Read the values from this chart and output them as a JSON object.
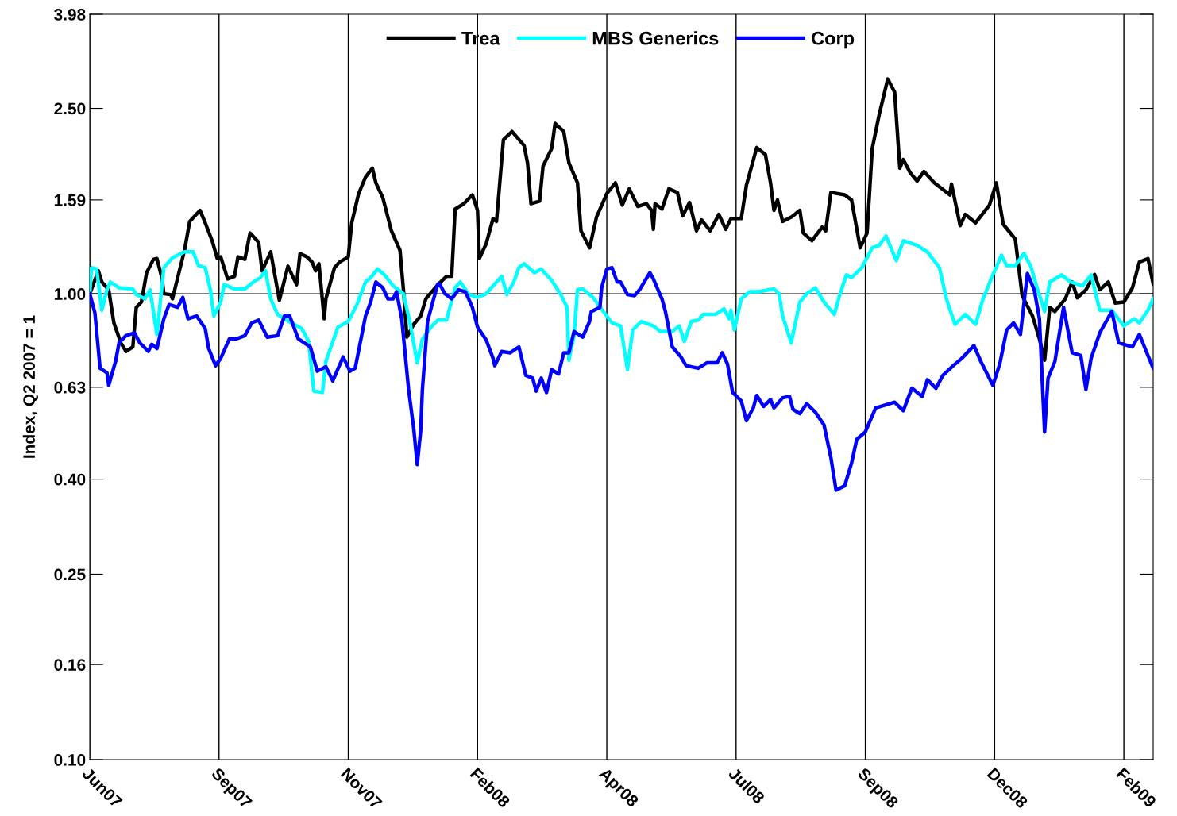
{
  "chart_data": {
    "type": "line",
    "ylabel": "Index, Q2 2007 = 1",
    "log": "y",
    "grid": "x",
    "legend": "top",
    "line_style": "solid",
    "marker": "none",
    "xlim": [
      "2007-06-29",
      "2009-03-07"
    ],
    "xticks": [
      {
        "value": "2007-06-29",
        "label": "Jun07"
      },
      {
        "value": "2007-09-12",
        "label": "Sep07"
      },
      {
        "value": "2007-11-26",
        "label": "Nov07"
      },
      {
        "value": "2008-02-09",
        "label": "Feb08"
      },
      {
        "value": "2008-04-24",
        "label": "Apr08"
      },
      {
        "value": "2008-07-08",
        "label": "Jul08"
      },
      {
        "value": "2008-09-21",
        "label": "Sep08"
      },
      {
        "value": "2008-12-05",
        "label": "Dec08"
      },
      {
        "value": "2009-02-18",
        "label": "Feb09"
      }
    ],
    "ylim": [
      0.1,
      3.98
    ],
    "yticks": [
      {
        "value": 0.1,
        "label": "0.10"
      },
      {
        "value": 0.16,
        "label": "0.16"
      },
      {
        "value": 0.25,
        "label": "0.25"
      },
      {
        "value": 0.4,
        "label": "0.40"
      },
      {
        "value": 0.63,
        "label": "0.63"
      },
      {
        "value": 1,
        "label": "1.00"
      },
      {
        "value": 1.59,
        "label": "1.59"
      },
      {
        "value": 2.5,
        "label": "2.50"
      },
      {
        "value": 3.98,
        "label": "3.98"
      }
    ],
    "ref_lines": [
      {
        "axis": "y",
        "value": 1,
        "color": "#000000"
      }
    ],
    "series": [
      {
        "name": "Trea",
        "color": "#000000",
        "x": [
          "2007-06-29",
          "2007-07-04",
          "2007-07-06",
          "2007-07-10",
          "2007-07-13",
          "2007-07-17",
          "2007-07-20",
          "2007-07-24",
          "2007-07-26",
          "2007-07-29",
          "2007-08-01",
          "2007-08-05",
          "2007-08-07",
          "2007-08-10",
          "2007-08-11",
          "2007-08-15",
          "2007-08-16",
          "2007-08-20",
          "2007-08-23",
          "2007-08-26",
          "2007-09-01",
          "2007-09-04",
          "2007-09-08",
          "2007-09-11",
          "2007-09-13",
          "2007-09-17",
          "2007-09-21",
          "2007-09-23",
          "2007-09-27",
          "2007-09-30",
          "2007-10-05",
          "2007-10-07",
          "2007-10-12",
          "2007-10-17",
          "2007-10-22",
          "2007-10-27",
          "2007-10-29",
          "2007-11-02",
          "2007-11-05",
          "2007-11-07",
          "2007-11-09",
          "2007-11-12",
          "2007-11-13",
          "2007-11-18",
          "2007-11-21",
          "2007-11-26",
          "2007-11-28",
          "2007-12-02",
          "2007-12-06",
          "2007-12-10",
          "2007-12-12",
          "2007-12-16",
          "2007-12-21",
          "2007-12-26",
          "2007-12-28",
          "2007-12-30",
          "2008-01-03",
          "2008-01-07",
          "2008-01-10",
          "2008-01-17",
          "2008-01-22",
          "2008-01-25",
          "2008-01-27",
          "2008-02-01",
          "2008-02-06",
          "2008-02-09",
          "2008-02-10",
          "2008-02-14",
          "2008-02-18",
          "2008-02-20",
          "2008-02-24",
          "2008-02-29",
          "2008-03-07",
          "2008-03-09",
          "2008-03-11",
          "2008-03-16",
          "2008-03-18",
          "2008-03-23",
          "2008-03-25",
          "2008-03-30",
          "2008-04-02",
          "2008-04-07",
          "2008-04-09",
          "2008-04-14",
          "2008-04-18",
          "2008-04-24",
          "2008-04-29",
          "2008-05-03",
          "2008-05-07",
          "2008-05-12",
          "2008-05-17",
          "2008-05-20",
          "2008-05-21",
          "2008-05-22",
          "2008-05-26",
          "2008-05-30",
          "2008-06-04",
          "2008-06-07",
          "2008-06-11",
          "2008-06-15",
          "2008-06-18",
          "2008-06-23",
          "2008-06-28",
          "2008-07-02",
          "2008-07-05",
          "2008-07-11",
          "2008-07-14",
          "2008-07-20",
          "2008-07-25",
          "2008-07-28",
          "2008-07-30",
          "2008-08-01",
          "2008-08-04",
          "2008-08-09",
          "2008-08-14",
          "2008-08-16",
          "2008-08-21",
          "2008-08-27",
          "2008-08-29",
          "2008-09-01",
          "2008-09-09",
          "2008-09-13",
          "2008-09-18",
          "2008-09-22",
          "2008-09-25",
          "2008-09-29",
          "2008-10-04",
          "2008-10-08",
          "2008-10-11",
          "2008-10-13",
          "2008-10-17",
          "2008-10-21",
          "2008-10-25",
          "2008-10-31",
          "2008-11-09",
          "2008-11-10",
          "2008-11-15",
          "2008-11-18",
          "2008-11-24",
          "2008-12-02",
          "2008-12-06",
          "2008-12-10",
          "2008-12-17",
          "2008-12-21",
          "2008-12-27",
          "2008-12-31",
          "2009-01-03",
          "2009-01-06",
          "2009-01-09",
          "2009-01-15",
          "2009-01-19",
          "2009-01-22",
          "2009-01-27",
          "2009-02-01",
          "2009-02-04",
          "2009-02-09",
          "2009-02-13",
          "2009-02-18",
          "2009-02-23",
          "2009-02-27",
          "2009-03-04",
          "2009-03-07"
        ],
        "values": [
          1.0,
          1.12,
          1.06,
          1.02,
          0.866,
          0.785,
          0.752,
          0.769,
          0.935,
          0.96,
          1.11,
          1.186,
          1.19,
          1.076,
          1.0,
          0.996,
          0.975,
          1.12,
          1.24,
          1.43,
          1.51,
          1.42,
          1.3,
          1.19,
          1.2,
          1.076,
          1.09,
          1.2,
          1.186,
          1.35,
          1.29,
          1.12,
          1.23,
          0.968,
          1.146,
          1.046,
          1.22,
          1.2,
          1.17,
          1.12,
          1.16,
          0.884,
          0.975,
          1.138,
          1.17,
          1.2,
          1.42,
          1.64,
          1.78,
          1.86,
          1.73,
          1.61,
          1.365,
          1.24,
          1.02,
          0.807,
          0.86,
          0.896,
          0.975,
          1.046,
          1.09,
          1.09,
          1.52,
          1.56,
          1.63,
          1.51,
          1.19,
          1.28,
          1.45,
          1.43,
          2.14,
          2.23,
          2.08,
          1.91,
          1.56,
          1.58,
          1.88,
          2.05,
          2.32,
          2.23,
          1.91,
          1.73,
          1.365,
          1.255,
          1.46,
          1.64,
          1.73,
          1.55,
          1.68,
          1.54,
          1.56,
          1.51,
          1.375,
          1.56,
          1.52,
          1.68,
          1.65,
          1.47,
          1.57,
          1.365,
          1.44,
          1.365,
          1.48,
          1.375,
          1.45,
          1.45,
          1.71,
          2.06,
          1.99,
          1.73,
          1.51,
          1.59,
          1.43,
          1.46,
          1.51,
          1.35,
          1.3,
          1.39,
          1.365,
          1.65,
          1.63,
          1.59,
          1.255,
          1.35,
          2.05,
          2.42,
          2.89,
          2.71,
          1.86,
          1.94,
          1.82,
          1.745,
          1.83,
          1.73,
          1.63,
          1.72,
          1.4,
          1.48,
          1.42,
          1.55,
          1.73,
          1.41,
          1.31,
          0.99,
          0.896,
          0.8,
          0.72,
          0.935,
          0.916,
          0.975,
          1.06,
          0.98,
          1.02,
          1.1,
          1.02,
          1.06,
          0.955,
          0.96,
          1.03,
          1.17,
          1.19,
          1.05
        ]
      },
      {
        "name": "MBS Generics",
        "color": "#00ffff",
        "x": [
          "2007-06-29",
          "2007-06-30",
          "2007-07-03",
          "2007-07-06",
          "2007-07-09",
          "2007-07-11",
          "2007-07-16",
          "2007-07-24",
          "2007-07-26",
          "2007-07-31",
          "2007-08-03",
          "2007-08-07",
          "2007-08-11",
          "2007-08-16",
          "2007-08-23",
          "2007-08-28",
          "2007-08-31",
          "2007-09-04",
          "2007-09-07",
          "2007-09-09",
          "2007-09-13",
          "2007-09-15",
          "2007-09-21",
          "2007-09-27",
          "2007-10-02",
          "2007-10-06",
          "2007-10-09",
          "2007-10-12",
          "2007-10-16",
          "2007-10-24",
          "2007-10-30",
          "2007-11-03",
          "2007-11-06",
          "2007-11-11",
          "2007-11-13",
          "2007-11-20",
          "2007-11-26",
          "2007-12-01",
          "2007-12-06",
          "2007-12-09",
          "2007-12-13",
          "2007-12-17",
          "2007-12-22",
          "2007-12-28",
          "2008-01-01",
          "2008-01-05",
          "2008-01-08",
          "2008-01-13",
          "2008-01-17",
          "2008-01-22",
          "2008-01-27",
          "2008-01-30",
          "2008-02-04",
          "2008-02-09",
          "2008-02-14",
          "2008-02-20",
          "2008-02-23",
          "2008-02-26",
          "2008-03-01",
          "2008-03-04",
          "2008-03-07",
          "2008-03-13",
          "2008-03-17",
          "2008-03-23",
          "2008-03-28",
          "2008-04-01",
          "2008-04-02",
          "2008-04-05",
          "2008-04-07",
          "2008-04-10",
          "2008-04-16",
          "2008-04-22",
          "2008-04-27",
          "2008-05-02",
          "2008-05-06",
          "2008-05-09",
          "2008-05-14",
          "2008-05-21",
          "2008-05-25",
          "2008-06-01",
          "2008-06-05",
          "2008-06-08",
          "2008-06-12",
          "2008-06-16",
          "2008-06-19",
          "2008-06-26",
          "2008-07-01",
          "2008-07-04",
          "2008-07-05",
          "2008-07-07",
          "2008-07-11",
          "2008-07-16",
          "2008-07-21",
          "2008-07-30",
          "2008-08-02",
          "2008-08-04",
          "2008-08-09",
          "2008-08-14",
          "2008-08-18",
          "2008-08-23",
          "2008-08-28",
          "2008-09-03",
          "2008-09-06",
          "2008-09-10",
          "2008-09-13",
          "2008-09-19",
          "2008-09-25",
          "2008-09-29",
          "2008-10-03",
          "2008-10-09",
          "2008-10-13",
          "2008-10-21",
          "2008-10-27",
          "2008-11-03",
          "2008-11-07",
          "2008-11-12",
          "2008-11-18",
          "2008-11-24",
          "2008-11-28",
          "2008-12-03",
          "2008-12-09",
          "2008-12-12",
          "2008-12-17",
          "2008-12-22",
          "2008-12-26",
          "2008-12-30",
          "2009-01-03",
          "2009-01-06",
          "2009-01-13",
          "2009-01-18",
          "2009-01-25",
          "2009-01-30",
          "2009-02-04",
          "2009-02-11",
          "2009-02-18",
          "2009-02-24",
          "2009-02-27",
          "2009-03-04",
          "2009-03-07"
        ],
        "values": [
          1.0,
          1.138,
          1.13,
          0.922,
          1.02,
          1.06,
          1.03,
          1.024,
          0.996,
          0.975,
          1.02,
          0.818,
          1.138,
          1.195,
          1.23,
          1.23,
          1.15,
          1.138,
          1.02,
          0.896,
          0.96,
          1.046,
          1.024,
          1.024,
          1.06,
          1.083,
          1.12,
          0.975,
          0.903,
          0.866,
          0.842,
          0.79,
          0.618,
          0.614,
          0.716,
          0.848,
          0.872,
          0.948,
          1.06,
          1.083,
          1.13,
          1.098,
          1.04,
          1.0,
          0.86,
          0.711,
          0.8,
          0.848,
          0.878,
          0.878,
          1.03,
          1.06,
          0.996,
          0.982,
          1.0,
          1.06,
          1.09,
          0.996,
          1.06,
          1.138,
          1.16,
          1.11,
          1.13,
          1.068,
          1.0,
          0.935,
          0.72,
          0.813,
          1.02,
          1.024,
          0.982,
          0.916,
          0.866,
          0.853,
          0.687,
          0.836,
          0.872,
          0.853,
          0.83,
          0.83,
          0.853,
          0.79,
          0.872,
          0.878,
          0.903,
          0.903,
          0.928,
          0.884,
          0.922,
          0.836,
          0.975,
          1.01,
          1.01,
          1.024,
          1.0,
          0.896,
          0.785,
          0.96,
          1.0,
          1.03,
          0.96,
          0.903,
          0.99,
          1.098,
          1.083,
          1.138,
          1.255,
          1.27,
          1.33,
          1.178,
          1.3,
          1.27,
          1.23,
          1.138,
          0.975,
          0.86,
          0.903,
          0.86,
          0.968,
          1.076,
          1.21,
          1.15,
          1.15,
          1.22,
          1.146,
          1.02,
          0.916,
          1.06,
          1.098,
          1.06,
          1.04,
          1.098,
          0.922,
          0.922,
          0.853,
          0.884,
          0.866,
          0.922,
          0.975
        ]
      },
      {
        "name": "Corp",
        "color": "#0000ff",
        "x": [
          "2007-06-29",
          "2007-07-02",
          "2007-07-05",
          "2007-07-09",
          "2007-07-10",
          "2007-07-14",
          "2007-07-16",
          "2007-07-20",
          "2007-07-25",
          "2007-07-28",
          "2007-08-02",
          "2007-08-04",
          "2007-08-07",
          "2007-08-11",
          "2007-08-14",
          "2007-08-19",
          "2007-08-22",
          "2007-08-25",
          "2007-08-30",
          "2007-09-04",
          "2007-09-06",
          "2007-09-10",
          "2007-09-13",
          "2007-09-18",
          "2007-09-22",
          "2007-09-27",
          "2007-10-01",
          "2007-10-05",
          "2007-10-10",
          "2007-10-16",
          "2007-10-20",
          "2007-10-23",
          "2007-10-28",
          "2007-11-04",
          "2007-11-08",
          "2007-11-13",
          "2007-11-17",
          "2007-11-23",
          "2007-11-27",
          "2007-11-30",
          "2007-12-06",
          "2007-12-09",
          "2007-12-12",
          "2007-12-16",
          "2007-12-19",
          "2007-12-22",
          "2007-12-24",
          "2007-12-27",
          "2007-12-31",
          "2008-01-03",
          "2008-01-05",
          "2008-01-07",
          "2008-01-08",
          "2008-01-11",
          "2008-01-14",
          "2008-01-17",
          "2008-01-18",
          "2008-01-21",
          "2008-01-25",
          "2008-01-29",
          "2008-02-02",
          "2008-02-06",
          "2008-02-09",
          "2008-02-14",
          "2008-02-18",
          "2008-02-19",
          "2008-02-23",
          "2008-02-28",
          "2008-03-04",
          "2008-03-08",
          "2008-03-12",
          "2008-03-14",
          "2008-03-17",
          "2008-03-20",
          "2008-03-23",
          "2008-03-27",
          "2008-03-30",
          "2008-04-02",
          "2008-04-05",
          "2008-04-10",
          "2008-04-14",
          "2008-04-15",
          "2008-04-20",
          "2008-04-21",
          "2008-04-24",
          "2008-04-27",
          "2008-04-30",
          "2008-05-02",
          "2008-05-06",
          "2008-05-10",
          "2008-05-13",
          "2008-05-19",
          "2008-05-21",
          "2008-05-26",
          "2008-05-28",
          "2008-06-01",
          "2008-06-06",
          "2008-06-09",
          "2008-06-16",
          "2008-06-21",
          "2008-06-27",
          "2008-06-30",
          "2008-07-03",
          "2008-07-06",
          "2008-07-11",
          "2008-07-14",
          "2008-07-18",
          "2008-07-20",
          "2008-07-24",
          "2008-07-28",
          "2008-07-30",
          "2008-08-04",
          "2008-08-08",
          "2008-08-10",
          "2008-08-14",
          "2008-08-18",
          "2008-08-23",
          "2008-08-28",
          "2008-09-01",
          "2008-09-04",
          "2008-09-09",
          "2008-09-13",
          "2008-09-16",
          "2008-09-21",
          "2008-09-27",
          "2008-10-02",
          "2008-10-08",
          "2008-10-13",
          "2008-10-18",
          "2008-10-24",
          "2008-10-27",
          "2008-11-01",
          "2008-11-05",
          "2008-11-11",
          "2008-11-16",
          "2008-11-23",
          "2008-11-27",
          "2008-12-04",
          "2008-12-08",
          "2008-12-12",
          "2008-12-16",
          "2008-12-20",
          "2008-12-24",
          "2008-12-28",
          "2008-12-31",
          "2009-01-03",
          "2009-01-05",
          "2009-01-09",
          "2009-01-14",
          "2009-01-19",
          "2009-01-24",
          "2009-01-27",
          "2009-01-30",
          "2009-02-04",
          "2009-02-11",
          "2009-02-15",
          "2009-02-23",
          "2009-02-27",
          "2009-03-03",
          "2009-03-07"
        ],
        "values": [
          1.0,
          0.909,
          0.692,
          0.677,
          0.636,
          0.716,
          0.785,
          0.813,
          0.824,
          0.785,
          0.752,
          0.779,
          0.763,
          0.884,
          0.948,
          0.935,
          0.982,
          0.884,
          0.896,
          0.842,
          0.763,
          0.701,
          0.727,
          0.8,
          0.8,
          0.813,
          0.866,
          0.878,
          0.807,
          0.813,
          0.896,
          0.896,
          0.8,
          0.769,
          0.682,
          0.697,
          0.65,
          0.732,
          0.682,
          0.692,
          0.896,
          0.96,
          1.06,
          1.03,
          0.975,
          0.975,
          1.01,
          0.884,
          0.623,
          0.512,
          0.43,
          0.508,
          0.623,
          0.872,
          0.96,
          1.05,
          1.05,
          1.0,
          0.975,
          1.02,
          1.01,
          0.935,
          0.848,
          0.796,
          0.727,
          0.701,
          0.752,
          0.747,
          0.769,
          0.668,
          0.659,
          0.618,
          0.659,
          0.614,
          0.687,
          0.673,
          0.747,
          0.747,
          0.83,
          0.807,
          0.872,
          0.916,
          0.935,
          1.03,
          1.13,
          1.138,
          1.06,
          1.06,
          0.996,
          0.99,
          1.02,
          1.11,
          1.076,
          0.975,
          0.916,
          0.769,
          0.732,
          0.701,
          0.692,
          0.711,
          0.711,
          0.747,
          0.707,
          0.614,
          0.589,
          0.534,
          0.569,
          0.605,
          0.573,
          0.593,
          0.569,
          0.598,
          0.602,
          0.565,
          0.553,
          0.581,
          0.557,
          0.523,
          0.445,
          0.379,
          0.387,
          0.433,
          0.487,
          0.505,
          0.569,
          0.576,
          0.585,
          0.561,
          0.627,
          0.602,
          0.654,
          0.627,
          0.668,
          0.701,
          0.727,
          0.774,
          0.716,
          0.636,
          0.707,
          0.836,
          0.866,
          0.818,
          1.106,
          1.02,
          0.884,
          0.505,
          0.659,
          0.716,
          0.935,
          0.747,
          0.737,
          0.623,
          0.727,
          0.824,
          0.916,
          0.785,
          0.769,
          0.818,
          0.752,
          0.692
        ]
      }
    ]
  }
}
